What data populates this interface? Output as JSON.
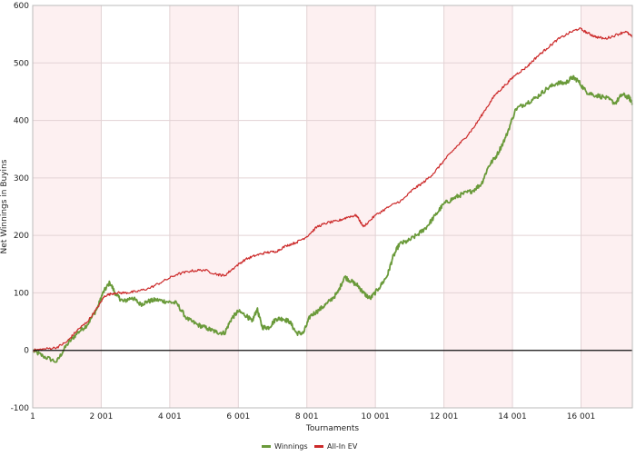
{
  "chart_data": {
    "type": "line",
    "title": "",
    "xlabel": "Tournaments",
    "ylabel": "Net Winnings in Buyins",
    "xlim": [
      1,
      17500
    ],
    "ylim": [
      -100,
      600
    ],
    "x_ticks": [
      {
        "value": 1,
        "label": "1"
      },
      {
        "value": 2001,
        "label": "2 001"
      },
      {
        "value": 4001,
        "label": "4 001"
      },
      {
        "value": 6001,
        "label": "6 001"
      },
      {
        "value": 8001,
        "label": "8 001"
      },
      {
        "value": 10001,
        "label": "10 001"
      },
      {
        "value": 12001,
        "label": "12 001"
      },
      {
        "value": 14001,
        "label": "14 001"
      },
      {
        "value": 16001,
        "label": "16 001"
      }
    ],
    "y_ticks": [
      {
        "value": -100,
        "label": "-100"
      },
      {
        "value": 0,
        "label": "0"
      },
      {
        "value": 100,
        "label": "100"
      },
      {
        "value": 200,
        "label": "200"
      },
      {
        "value": 300,
        "label": "300"
      },
      {
        "value": 400,
        "label": "400"
      },
      {
        "value": 500,
        "label": "500"
      },
      {
        "value": 600,
        "label": "600"
      }
    ],
    "grid": true,
    "legend_position": "bottom-center",
    "series": [
      {
        "name": "Winnings",
        "color": "#6a9a3a",
        "points": [
          [
            1,
            0
          ],
          [
            300,
            -10
          ],
          [
            700,
            -20
          ],
          [
            1000,
            10
          ],
          [
            1300,
            30
          ],
          [
            1600,
            45
          ],
          [
            1900,
            75
          ],
          [
            2050,
            100
          ],
          [
            2250,
            118
          ],
          [
            2450,
            95
          ],
          [
            2650,
            85
          ],
          [
            2900,
            92
          ],
          [
            3150,
            80
          ],
          [
            3350,
            85
          ],
          [
            3600,
            88
          ],
          [
            3900,
            85
          ],
          [
            4200,
            82
          ],
          [
            4500,
            55
          ],
          [
            4800,
            45
          ],
          [
            5100,
            38
          ],
          [
            5350,
            32
          ],
          [
            5600,
            30
          ],
          [
            5800,
            55
          ],
          [
            6000,
            68
          ],
          [
            6250,
            60
          ],
          [
            6400,
            50
          ],
          [
            6550,
            72
          ],
          [
            6700,
            40
          ],
          [
            6900,
            40
          ],
          [
            7100,
            55
          ],
          [
            7300,
            55
          ],
          [
            7500,
            50
          ],
          [
            7700,
            30
          ],
          [
            7900,
            30
          ],
          [
            8100,
            60
          ],
          [
            8350,
            70
          ],
          [
            8600,
            82
          ],
          [
            8900,
            100
          ],
          [
            9100,
            128
          ],
          [
            9300,
            120
          ],
          [
            9500,
            112
          ],
          [
            9650,
            100
          ],
          [
            9850,
            90
          ],
          [
            10100,
            108
          ],
          [
            10350,
            130
          ],
          [
            10500,
            160
          ],
          [
            10700,
            185
          ],
          [
            10950,
            190
          ],
          [
            11250,
            202
          ],
          [
            11500,
            215
          ],
          [
            11750,
            235
          ],
          [
            12000,
            255
          ],
          [
            12300,
            265
          ],
          [
            12550,
            272
          ],
          [
            12850,
            278
          ],
          [
            13100,
            290
          ],
          [
            13300,
            320
          ],
          [
            13550,
            340
          ],
          [
            13800,
            370
          ],
          [
            14100,
            420
          ],
          [
            14400,
            430
          ],
          [
            14700,
            440
          ],
          [
            15000,
            455
          ],
          [
            15300,
            465
          ],
          [
            15550,
            465
          ],
          [
            15750,
            475
          ],
          [
            15900,
            470
          ],
          [
            16150,
            450
          ],
          [
            16350,
            445
          ],
          [
            16700,
            440
          ],
          [
            17000,
            430
          ],
          [
            17200,
            445
          ],
          [
            17400,
            440
          ],
          [
            17500,
            430
          ]
        ]
      },
      {
        "name": "All-In EV",
        "color": "#cc2a2a",
        "points": [
          [
            1,
            0
          ],
          [
            300,
            2
          ],
          [
            700,
            5
          ],
          [
            1000,
            15
          ],
          [
            1300,
            35
          ],
          [
            1600,
            50
          ],
          [
            1900,
            75
          ],
          [
            2100,
            95
          ],
          [
            2400,
            100
          ],
          [
            2700,
            100
          ],
          [
            3000,
            102
          ],
          [
            3400,
            108
          ],
          [
            3800,
            120
          ],
          [
            4200,
            132
          ],
          [
            4600,
            138
          ],
          [
            5000,
            140
          ],
          [
            5400,
            132
          ],
          [
            5600,
            130
          ],
          [
            5900,
            145
          ],
          [
            6200,
            158
          ],
          [
            6500,
            165
          ],
          [
            6800,
            170
          ],
          [
            7100,
            172
          ],
          [
            7400,
            182
          ],
          [
            7700,
            188
          ],
          [
            8000,
            198
          ],
          [
            8300,
            215
          ],
          [
            8600,
            222
          ],
          [
            8900,
            225
          ],
          [
            9200,
            232
          ],
          [
            9450,
            235
          ],
          [
            9650,
            215
          ],
          [
            10000,
            235
          ],
          [
            10400,
            250
          ],
          [
            10800,
            262
          ],
          [
            11100,
            280
          ],
          [
            11400,
            292
          ],
          [
            11700,
            308
          ],
          [
            12000,
            330
          ],
          [
            12300,
            350
          ],
          [
            12600,
            368
          ],
          [
            12900,
            390
          ],
          [
            13200,
            418
          ],
          [
            13500,
            445
          ],
          [
            13800,
            462
          ],
          [
            14100,
            480
          ],
          [
            14400,
            492
          ],
          [
            14700,
            510
          ],
          [
            15000,
            525
          ],
          [
            15300,
            540
          ],
          [
            15650,
            552
          ],
          [
            15950,
            560
          ],
          [
            16200,
            552
          ],
          [
            16400,
            546
          ],
          [
            16700,
            542
          ],
          [
            17000,
            548
          ],
          [
            17300,
            555
          ],
          [
            17500,
            545
          ]
        ]
      }
    ]
  }
}
